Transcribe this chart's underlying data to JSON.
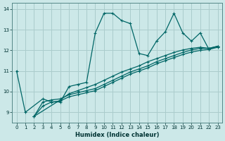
{
  "xlabel": "Humidex (Indice chaleur)",
  "bg_color": "#cce8e8",
  "grid_color": "#aacccc",
  "line_color": "#006666",
  "xlim": [
    -0.5,
    23.5
  ],
  "ylim": [
    8.5,
    14.3
  ],
  "yticks": [
    9,
    10,
    11,
    12,
    13,
    14
  ],
  "xticks": [
    0,
    1,
    2,
    3,
    4,
    5,
    6,
    7,
    8,
    9,
    10,
    11,
    12,
    13,
    14,
    15,
    16,
    17,
    18,
    19,
    20,
    21,
    22,
    23
  ],
  "series": [
    {
      "x": [
        0,
        1,
        2,
        3,
        4,
        5,
        6,
        7,
        8,
        9,
        10,
        11,
        12,
        13,
        14,
        15,
        16,
        17,
        18,
        19,
        20,
        21,
        22,
        23
      ],
      "y": [
        11.0,
        9.0,
        null,
        9.65,
        9.5,
        9.5,
        10.25,
        10.35,
        10.45,
        12.85,
        13.8,
        13.8,
        13.45,
        13.3,
        11.85,
        11.75,
        12.45,
        12.9,
        13.8,
        12.85,
        12.45,
        12.85,
        12.05,
        12.2
      ],
      "linestyle": "-",
      "marker": true
    },
    {
      "x": [
        2,
        3,
        4,
        5,
        6,
        7,
        8,
        9,
        10,
        11,
        12,
        13,
        14,
        15,
        16,
        17,
        18,
        19,
        20,
        21,
        22,
        23
      ],
      "y": [
        8.8,
        9.3,
        9.5,
        9.55,
        9.75,
        9.85,
        9.95,
        10.05,
        10.25,
        10.45,
        10.65,
        10.85,
        11.0,
        11.15,
        11.35,
        11.5,
        11.65,
        11.8,
        11.92,
        12.0,
        12.05,
        12.15
      ],
      "linestyle": "-",
      "marker": true
    },
    {
      "x": [
        2,
        3,
        4,
        5,
        6,
        7,
        8,
        9,
        10,
        11,
        12,
        13,
        14,
        15,
        16,
        17,
        18,
        19,
        20,
        21,
        22,
        23
      ],
      "y": [
        8.8,
        9.5,
        9.6,
        9.65,
        9.85,
        9.95,
        10.05,
        10.15,
        10.35,
        10.55,
        10.75,
        10.95,
        11.1,
        11.25,
        11.45,
        11.6,
        11.75,
        11.9,
        12.02,
        12.1,
        12.1,
        12.2
      ],
      "linestyle": "-",
      "marker": true
    },
    {
      "x": [
        2,
        5,
        6,
        7,
        8,
        9,
        10,
        11,
        12,
        13,
        14,
        15,
        16,
        17,
        18,
        19,
        20,
        21,
        22,
        23
      ],
      "y": [
        8.8,
        9.6,
        9.9,
        10.05,
        10.2,
        10.35,
        10.55,
        10.75,
        10.95,
        11.1,
        11.25,
        11.45,
        11.6,
        11.75,
        11.9,
        12.02,
        12.1,
        12.15,
        12.1,
        12.2
      ],
      "linestyle": "-",
      "marker": true
    }
  ]
}
